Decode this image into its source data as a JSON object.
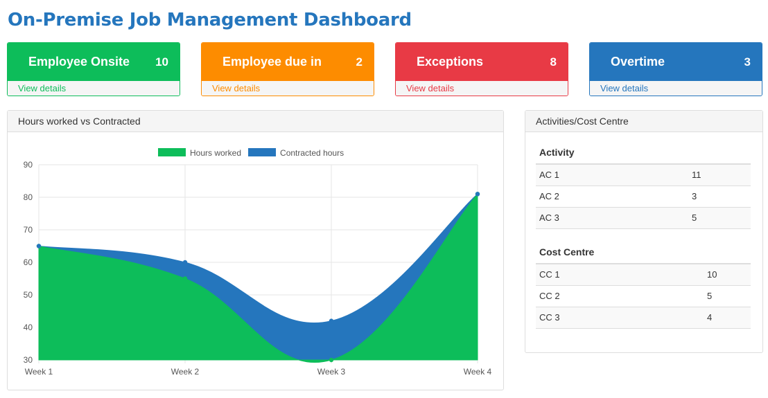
{
  "page": {
    "title": "On-Premise Job Management Dashboard"
  },
  "cards": [
    {
      "label": "Employee Onsite",
      "count": "10",
      "link": "View details",
      "color": "#0dbd5a"
    },
    {
      "label": "Employee due in",
      "count": "2",
      "link": "View details",
      "color": "#fd8c00"
    },
    {
      "label": "Exceptions",
      "count": "8",
      "link": "View details",
      "color": "#e83a45"
    },
    {
      "label": "Overtime",
      "count": "3",
      "link": "View details",
      "color": "#2576bd"
    }
  ],
  "hours_panel": {
    "title": "Hours worked vs Contracted"
  },
  "activities_panel": {
    "title": "Activities/Cost Centre",
    "activity_header": "Activity",
    "activities": [
      {
        "name": "AC 1",
        "value": "11"
      },
      {
        "name": "AC 2",
        "value": "3"
      },
      {
        "name": "AC 3",
        "value": "5"
      }
    ],
    "cost_header": "Cost Centre",
    "cost_centres": [
      {
        "name": "CC 1",
        "value": "10"
      },
      {
        "name": "CC 2",
        "value": "5"
      },
      {
        "name": "CC 3",
        "value": "4"
      }
    ]
  },
  "chart_data": {
    "type": "area",
    "title": "",
    "xlabel": "",
    "ylabel": "",
    "categories": [
      "Week 1",
      "Week 2",
      "Week 3",
      "Week 4"
    ],
    "ylim": [
      30,
      90
    ],
    "yticks": [
      30,
      40,
      50,
      60,
      70,
      80,
      90
    ],
    "grid": true,
    "legend_position": "top",
    "series": [
      {
        "name": "Hours worked",
        "values": [
          65,
          55,
          30,
          81
        ],
        "color": "#0dbd5a"
      },
      {
        "name": "Contracted hours",
        "values": [
          65,
          60,
          42,
          81
        ],
        "color": "#2576bd"
      }
    ]
  }
}
